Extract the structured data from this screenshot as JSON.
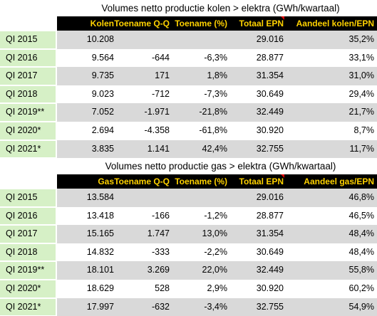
{
  "tables": [
    {
      "title": "Volumes netto productie kolen > elektra (GWh/kwartaal)",
      "headers": [
        "Kolen",
        "Toename Q-Q",
        "Toename (%)",
        "Totaal EPN",
        "Aandeel kolen/EPN"
      ],
      "rows": [
        {
          "label": "QI 2015",
          "cells": [
            "10.208",
            "",
            "",
            "29.016",
            "35,2%"
          ]
        },
        {
          "label": "QI 2016",
          "cells": [
            "9.564",
            "-644",
            "-6,3%",
            "28.877",
            "33,1%"
          ]
        },
        {
          "label": "QI 2017",
          "cells": [
            "9.735",
            "171",
            "1,8%",
            "31.354",
            "31,0%"
          ]
        },
        {
          "label": "QI 2018",
          "cells": [
            "9.023",
            "-712",
            "-7,3%",
            "30.649",
            "29,4%"
          ]
        },
        {
          "label": "QI 2019**",
          "cells": [
            "7.052",
            "-1.971",
            "-21,8%",
            "32.449",
            "21,7%"
          ]
        },
        {
          "label": "QI 2020*",
          "cells": [
            "2.694",
            "-4.358",
            "-61,8%",
            "30.920",
            "8,7%"
          ]
        },
        {
          "label": "QI 2021*",
          "cells": [
            "3.835",
            "1.141",
            "42,4%",
            "32.755",
            "11,7%"
          ]
        }
      ]
    },
    {
      "title": "Volumes netto productie gas  > elektra (GWh/kwartaal)",
      "headers": [
        "Gas",
        "Toename Q-Q",
        "Toename (%)",
        "Totaal EPN",
        "Aandeel gas/EPN"
      ],
      "rows": [
        {
          "label": "QI 2015",
          "cells": [
            "13.584",
            "",
            "",
            "29.016",
            "46,8%"
          ]
        },
        {
          "label": "QI 2016",
          "cells": [
            "13.418",
            "-166",
            "-1,2%",
            "28.877",
            "46,5%"
          ]
        },
        {
          "label": "QI 2017",
          "cells": [
            "15.165",
            "1.747",
            "13,0%",
            "31.354",
            "48,4%"
          ]
        },
        {
          "label": "QI 2018",
          "cells": [
            "14.832",
            "-333",
            "-2,2%",
            "30.649",
            "48,4%"
          ]
        },
        {
          "label": "QI 2019**",
          "cells": [
            "18.101",
            "3.269",
            "22,0%",
            "32.449",
            "55,8%"
          ]
        },
        {
          "label": "QI 2020*",
          "cells": [
            "18.629",
            "528",
            "2,9%",
            "30.920",
            "60,2%"
          ]
        },
        {
          "label": "QI 2021*",
          "cells": [
            "17.997",
            "-632",
            "-3,4%",
            "32.755",
            "54,9%"
          ]
        }
      ]
    }
  ],
  "colors": {
    "header_bg": "#000000",
    "header_text": "#ffd200",
    "label_bg": "#d6f0c6",
    "row_shade": "#d9d9d9",
    "comment_flag": "#e00000"
  }
}
